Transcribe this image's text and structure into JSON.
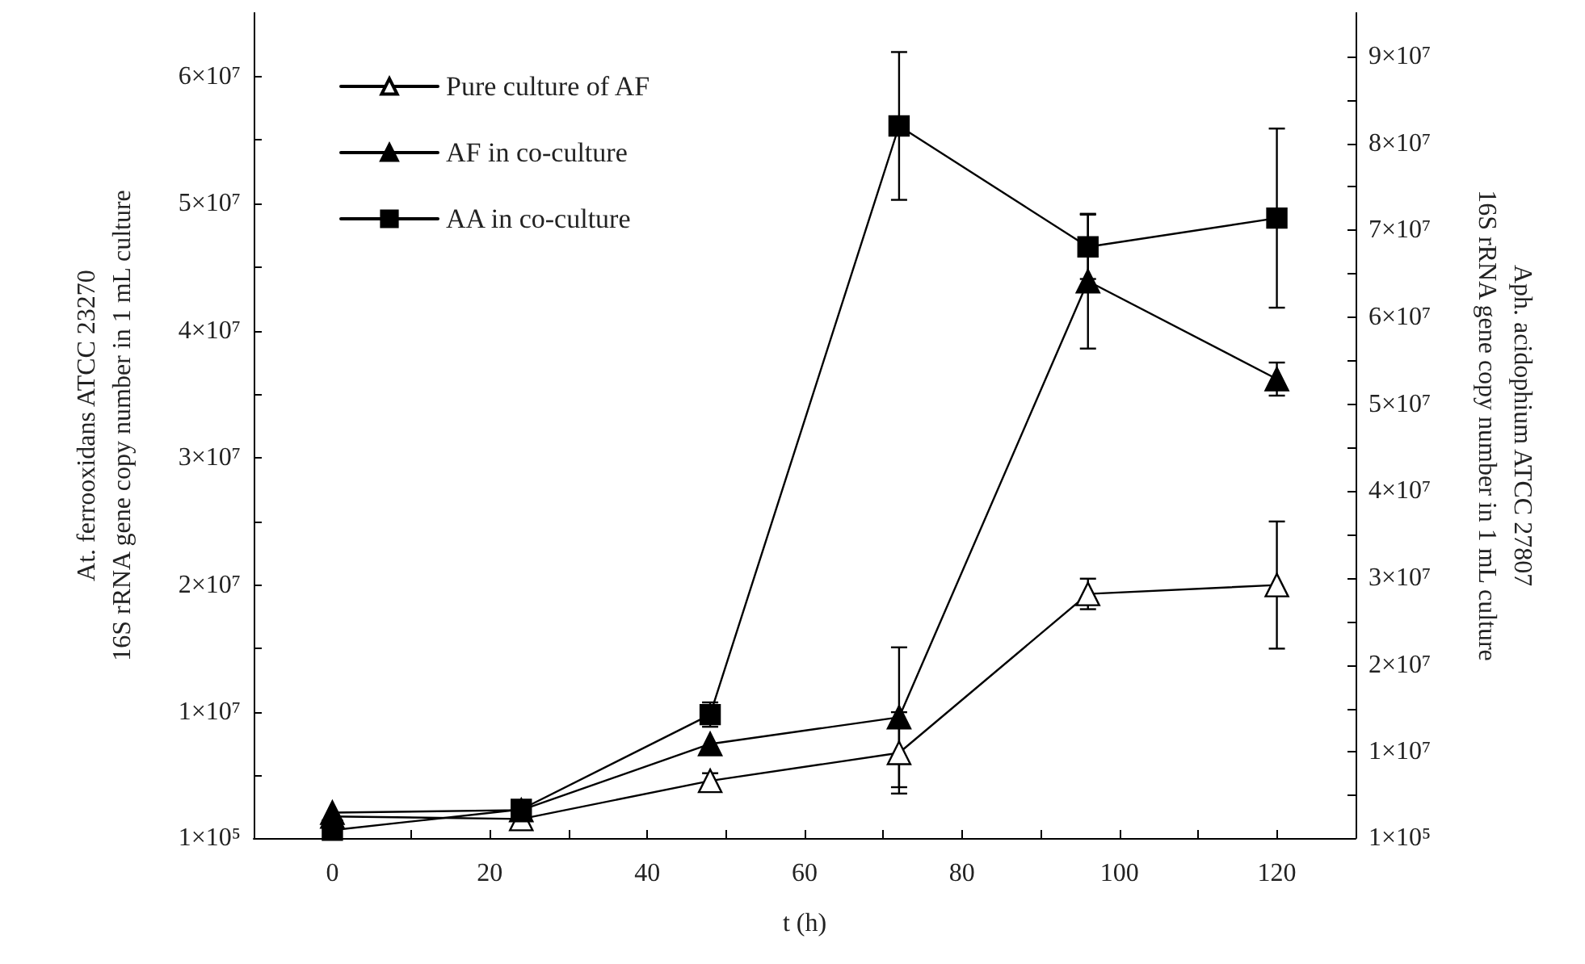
{
  "chart_data": {
    "type": "line",
    "xlabel": "t (h)",
    "ylabel": "At. ferrooxidans ATCC 23270\n16S rRNA gene copy number in 1 mL culture",
    "y2label": "Aph. acidophium ATCC 27807\n16S rRNA gene copy number in 1 mL culture",
    "x": [
      0,
      24,
      48,
      72,
      96,
      120
    ],
    "series": [
      {
        "name": "Pure culture of AF",
        "color": "#000000",
        "marker": "triangle",
        "colors": [
          "#ffffff",
          "#ffffff",
          "#ffffff",
          "#ffffff",
          "#ffffff",
          "#ffffff"
        ],
        "values": [
          1800000,
          1600000,
          4600000,
          6800000,
          19300000,
          20000000
        ],
        "errors": [
          null,
          500000,
          600000,
          3200000,
          1200000,
          5000000
        ]
      },
      {
        "name": "AF in co-culture",
        "color": "#000000",
        "marker": "triangle",
        "values": [
          2100000,
          2300000,
          7500000,
          9600000,
          43900000,
          36200000
        ],
        "errors": [
          null,
          null,
          null,
          5500000,
          5300000,
          1300000
        ]
      },
      {
        "name": "AA in co-culture",
        "color": "#000000",
        "marker": "square",
        "axis": "y2",
        "values": [
          1000000,
          3400000,
          14300000,
          82000000,
          68100000,
          71400000
        ],
        "errors": [
          null,
          null,
          1400000,
          8500000,
          3700000,
          10300000
        ]
      }
    ],
    "xlim": [
      -10,
      130
    ],
    "xticks": [
      0,
      {
        "value": 10,
        "label": null
      },
      20,
      {
        "value": 30,
        "label": null
      },
      40,
      {
        "value": 50,
        "label": null
      },
      60,
      {
        "value": 70,
        "label": null
      },
      80,
      {
        "value": 90,
        "label": null
      },
      100,
      {
        "value": 110,
        "label": null
      },
      120
    ],
    "ylim": [
      100000,
      65000000
    ],
    "yticks": [
      {
        "value": 100000,
        "label": "1×10⁵"
      },
      {
        "value": 5000000,
        "label": null
      },
      {
        "value": 10000000,
        "label": "1×10⁷"
      },
      {
        "value": 15000000,
        "label": null
      },
      {
        "value": 20000000,
        "label": "2×10⁷"
      },
      {
        "value": 25000000,
        "label": null
      },
      {
        "value": 30000000,
        "label": "3×10⁷"
      },
      {
        "value": 35000000,
        "label": null
      },
      {
        "value": 40000000,
        "label": "4×10⁷"
      },
      {
        "value": 45000000,
        "label": null
      },
      {
        "value": 50000000,
        "label": "5×10⁷"
      },
      {
        "value": 55000000,
        "label": null
      },
      {
        "value": 60000000,
        "label": "6×10⁷"
      }
    ],
    "y2lim": [
      100000,
      95000000
    ],
    "y2ticks": [
      {
        "value": 100000,
        "label": "1×10⁵"
      },
      {
        "value": 5000000,
        "label": null
      },
      {
        "value": 10000000,
        "label": "1×10⁷"
      },
      {
        "value": 15000000,
        "label": null
      },
      {
        "value": 20000000,
        "label": "2×10⁷"
      },
      {
        "value": 25000000,
        "label": null
      },
      {
        "value": 30000000,
        "label": "3×10⁷"
      },
      {
        "value": 35000000,
        "label": null
      },
      {
        "value": 40000000,
        "label": "4×10⁷"
      },
      {
        "value": 45000000,
        "label": null
      },
      {
        "value": 50000000,
        "label": "5×10⁷"
      },
      {
        "value": 55000000,
        "label": null
      },
      {
        "value": 60000000,
        "label": "6×10⁷"
      },
      {
        "value": 65000000,
        "label": null
      },
      {
        "value": 70000000,
        "label": "7×10⁷"
      },
      {
        "value": 75000000,
        "label": null
      },
      {
        "value": 80000000,
        "label": "8×10⁷"
      },
      {
        "value": 85000000,
        "label": null
      },
      {
        "value": 90000000,
        "label": "9×10⁷"
      }
    ],
    "grid": false,
    "legend": "top left",
    "line_style": "solid"
  }
}
